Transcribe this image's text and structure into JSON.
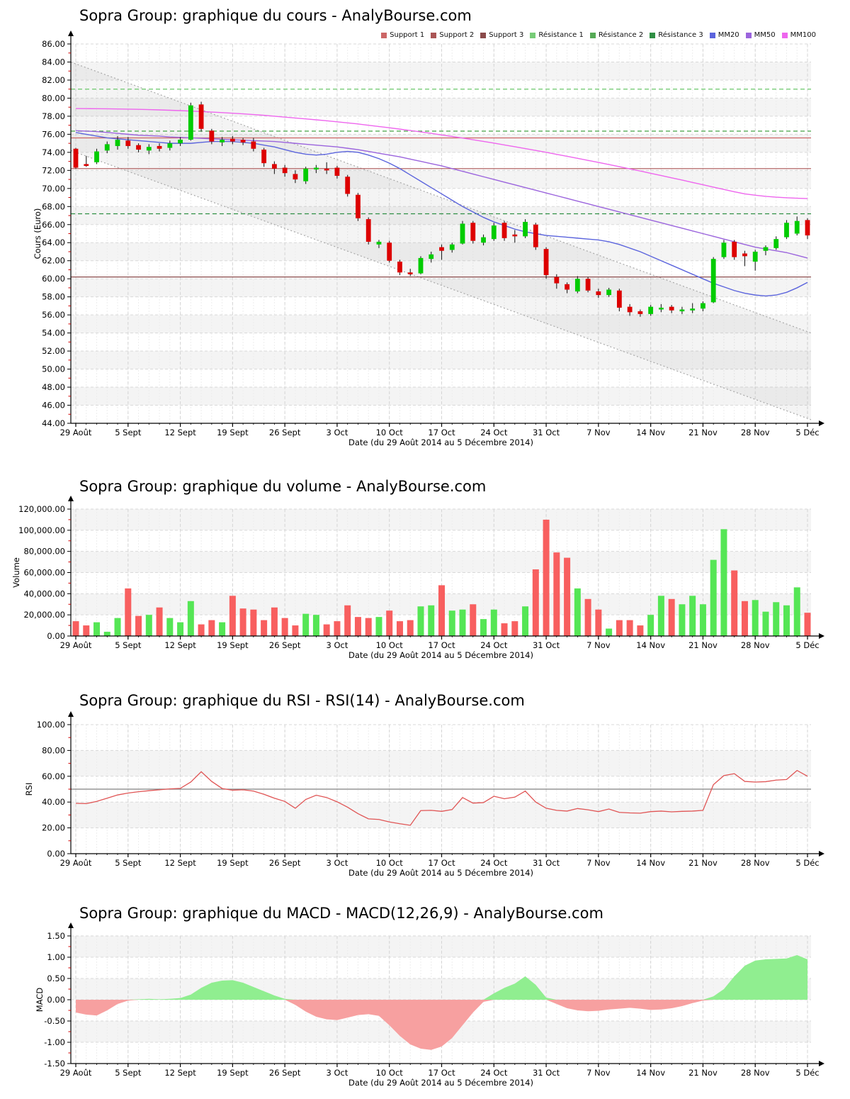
{
  "page": {
    "background": "#ffffff",
    "x_axis_label": "Date (du 29 Août 2014 au 5 Décembre 2014)",
    "x_tick_labels": [
      "29 Août",
      "5 Sept",
      "12 Sept",
      "19 Sept",
      "26 Sept",
      "3 Oct",
      "10 Oct",
      "17 Oct",
      "24 Oct",
      "31 Oct",
      "7 Nov",
      "14 Nov",
      "21 Nov",
      "28 Nov",
      "5 Déc"
    ]
  },
  "legend": {
    "items": [
      {
        "label": "Support 1",
        "color": "#cc6666"
      },
      {
        "label": "Support 2",
        "color": "#aa5555"
      },
      {
        "label": "Support 3",
        "color": "#8a4a4a"
      },
      {
        "label": "Résistance 1",
        "color": "#77cc77"
      },
      {
        "label": "Résistance 2",
        "color": "#55aa55"
      },
      {
        "label": "Résistance 3",
        "color": "#2f8f44"
      },
      {
        "label": "MM20",
        "color": "#5b64dd"
      },
      {
        "label": "MM50",
        "color": "#9b64dd"
      },
      {
        "label": "MM100",
        "color": "#ee66ee"
      }
    ]
  },
  "colors": {
    "candle_up": "#00cc00",
    "candle_down": "#dd0000",
    "wick": "#222222",
    "volume_up": "#55e655",
    "volume_down": "#f85f5f",
    "rsi_line": "#e05555",
    "rsi_midline": "#808080",
    "macd_positive": "#90ee90",
    "macd_negative": "#f7a0a0",
    "mm20": "#5b64dd",
    "mm50": "#9b64dd",
    "mm100": "#ee66ee",
    "support": [
      "#cc6666",
      "#aa5555",
      "#8a4a4a"
    ],
    "resistance": [
      "#77cc77",
      "#55aa55",
      "#2f8f44"
    ],
    "band_gray": "#f4f4f4",
    "grid": "#d9d9d9",
    "trend_dotted": "#a8a8a8"
  },
  "chart_data": [
    {
      "type": "candlestick",
      "title": "Sopra Group: graphique du cours - AnalyBourse.com",
      "ylabel": "Cours (Euro)",
      "ylim": [
        44,
        86
      ],
      "y_step": 2,
      "grid": true,
      "legend_position": "top-right",
      "support_levels": [
        75.6,
        72.2,
        60.2
      ],
      "resistance_levels": [
        81.0,
        76.35,
        67.2
      ],
      "trend_channel": {
        "upper_start": 84.0,
        "upper_end": 54.0,
        "lower_start": 74.2,
        "lower_end": 44.4
      },
      "candles_ohlc": [
        [
          74.4,
          74.5,
          72.2,
          72.3
        ],
        [
          72.7,
          73.6,
          72.4,
          72.5
        ],
        [
          72.9,
          74.4,
          72.7,
          74.1
        ],
        [
          74.2,
          75.2,
          73.9,
          74.9
        ],
        [
          74.7,
          75.8,
          74.3,
          75.4
        ],
        [
          75.3,
          75.7,
          74.4,
          74.7
        ],
        [
          74.8,
          75.0,
          74.0,
          74.3
        ],
        [
          74.2,
          74.9,
          73.8,
          74.6
        ],
        [
          74.7,
          75.0,
          74.1,
          74.4
        ],
        [
          74.5,
          75.3,
          74.2,
          75.0
        ],
        [
          75.0,
          75.7,
          74.7,
          75.4
        ],
        [
          75.4,
          79.5,
          75.3,
          79.2
        ],
        [
          79.3,
          79.6,
          76.3,
          76.6
        ],
        [
          76.4,
          76.6,
          74.9,
          75.2
        ],
        [
          75.1,
          75.7,
          74.7,
          75.4
        ],
        [
          75.5,
          75.8,
          74.9,
          75.2
        ],
        [
          75.4,
          75.6,
          74.8,
          75.1
        ],
        [
          75.2,
          75.6,
          74.1,
          74.4
        ],
        [
          74.3,
          74.5,
          72.4,
          72.8
        ],
        [
          72.7,
          73.0,
          71.6,
          72.2
        ],
        [
          72.3,
          72.6,
          71.3,
          71.7
        ],
        [
          71.6,
          72.0,
          70.6,
          71.0
        ],
        [
          70.8,
          72.4,
          70.5,
          72.2
        ],
        [
          72.1,
          72.6,
          71.7,
          72.3
        ],
        [
          72.2,
          72.9,
          71.6,
          72.0
        ],
        [
          72.3,
          72.5,
          71.1,
          71.4
        ],
        [
          71.3,
          71.5,
          69.1,
          69.4
        ],
        [
          69.3,
          69.5,
          66.4,
          66.7
        ],
        [
          66.6,
          66.8,
          63.8,
          64.1
        ],
        [
          63.8,
          64.3,
          63.4,
          64.1
        ],
        [
          64.0,
          64.2,
          61.8,
          62.0
        ],
        [
          61.9,
          62.1,
          60.4,
          60.7
        ],
        [
          60.7,
          61.1,
          60.3,
          60.5
        ],
        [
          60.6,
          62.5,
          60.5,
          62.3
        ],
        [
          62.2,
          63.0,
          61.8,
          62.7
        ],
        [
          63.5,
          63.8,
          62.1,
          63.1
        ],
        [
          63.2,
          64.0,
          62.9,
          63.8
        ],
        [
          63.9,
          66.4,
          63.8,
          66.1
        ],
        [
          66.2,
          66.4,
          63.9,
          64.2
        ],
        [
          64.0,
          64.9,
          63.7,
          64.6
        ],
        [
          64.4,
          66.2,
          64.2,
          65.9
        ],
        [
          66.2,
          66.4,
          64.2,
          64.5
        ],
        [
          64.9,
          65.4,
          64.0,
          64.7
        ],
        [
          64.7,
          66.6,
          64.5,
          66.3
        ],
        [
          66.0,
          66.2,
          63.2,
          63.5
        ],
        [
          63.3,
          63.5,
          60.0,
          60.4
        ],
        [
          60.2,
          60.5,
          58.9,
          59.5
        ],
        [
          59.4,
          59.6,
          58.4,
          58.8
        ],
        [
          58.6,
          60.3,
          58.4,
          60.0
        ],
        [
          60.0,
          60.2,
          58.5,
          58.7
        ],
        [
          58.6,
          58.9,
          57.9,
          58.2
        ],
        [
          58.2,
          59.0,
          58.0,
          58.8
        ],
        [
          58.7,
          58.9,
          56.4,
          56.8
        ],
        [
          56.9,
          57.2,
          55.9,
          56.3
        ],
        [
          56.4,
          56.6,
          55.8,
          56.1
        ],
        [
          56.1,
          57.1,
          55.9,
          56.9
        ],
        [
          56.6,
          57.2,
          56.3,
          56.8
        ],
        [
          56.9,
          57.1,
          56.2,
          56.5
        ],
        [
          56.4,
          56.9,
          56.1,
          56.6
        ],
        [
          56.5,
          57.3,
          56.2,
          56.7
        ],
        [
          56.7,
          57.5,
          56.4,
          57.3
        ],
        [
          57.4,
          62.4,
          57.3,
          62.2
        ],
        [
          62.4,
          64.3,
          62.2,
          64.0
        ],
        [
          64.1,
          64.3,
          62.1,
          62.4
        ],
        [
          62.8,
          63.1,
          61.4,
          62.5
        ],
        [
          61.9,
          63.2,
          60.9,
          63.0
        ],
        [
          63.1,
          63.7,
          62.6,
          63.5
        ],
        [
          63.4,
          64.7,
          63.2,
          64.4
        ],
        [
          64.6,
          66.5,
          64.4,
          66.2
        ],
        [
          65.0,
          66.9,
          64.8,
          66.4
        ],
        [
          66.5,
          66.7,
          64.4,
          64.8
        ]
      ],
      "mm20": [
        76.2,
        76.0,
        75.8,
        75.6,
        75.5,
        75.4,
        75.3,
        75.2,
        75.1,
        75.0,
        75.0,
        75.0,
        75.1,
        75.2,
        75.2,
        75.2,
        75.1,
        75.0,
        74.8,
        74.6,
        74.3,
        74.0,
        73.8,
        73.7,
        73.8,
        74.0,
        74.1,
        74.0,
        73.7,
        73.3,
        72.8,
        72.2,
        71.5,
        70.8,
        70.1,
        69.4,
        68.7,
        68.0,
        67.4,
        66.8,
        66.3,
        65.9,
        65.5,
        65.2,
        65.0,
        64.8,
        64.7,
        64.6,
        64.5,
        64.4,
        64.3,
        64.1,
        63.8,
        63.4,
        63.0,
        62.5,
        62.0,
        61.5,
        61.0,
        60.5,
        60.0,
        59.5,
        59.1,
        58.7,
        58.4,
        58.2,
        58.1,
        58.2,
        58.5,
        59.0,
        59.6
      ],
      "mm50": [
        76.4,
        76.35,
        76.3,
        76.2,
        76.1,
        76.0,
        75.9,
        75.85,
        75.8,
        75.7,
        75.65,
        75.6,
        75.55,
        75.5,
        75.45,
        75.4,
        75.35,
        75.3,
        75.25,
        75.2,
        75.1,
        75.0,
        74.9,
        74.8,
        74.7,
        74.6,
        74.45,
        74.3,
        74.1,
        73.9,
        73.7,
        73.5,
        73.25,
        73.0,
        72.75,
        72.5,
        72.2,
        71.9,
        71.6,
        71.3,
        71.0,
        70.7,
        70.4,
        70.1,
        69.8,
        69.5,
        69.2,
        68.9,
        68.6,
        68.3,
        68.0,
        67.7,
        67.4,
        67.1,
        66.8,
        66.5,
        66.2,
        65.9,
        65.6,
        65.3,
        65.0,
        64.7,
        64.4,
        64.1,
        63.8,
        63.5,
        63.3,
        63.1,
        62.9,
        62.6,
        62.3
      ],
      "mm100": [
        78.85,
        78.84,
        78.83,
        78.82,
        78.8,
        78.78,
        78.76,
        78.73,
        78.7,
        78.66,
        78.62,
        78.57,
        78.52,
        78.46,
        78.4,
        78.33,
        78.26,
        78.18,
        78.1,
        78.0,
        77.9,
        77.8,
        77.7,
        77.6,
        77.5,
        77.38,
        77.26,
        77.14,
        77.0,
        76.86,
        76.72,
        76.57,
        76.42,
        76.26,
        76.1,
        75.93,
        75.76,
        75.58,
        75.4,
        75.21,
        75.02,
        74.82,
        74.62,
        74.42,
        74.21,
        74.0,
        73.78,
        73.56,
        73.34,
        73.11,
        72.88,
        72.65,
        72.41,
        72.17,
        71.93,
        71.68,
        71.43,
        71.18,
        70.93,
        70.67,
        70.41,
        70.15,
        69.89,
        69.64,
        69.4,
        69.25,
        69.13,
        69.04,
        68.97,
        68.92,
        68.88
      ]
    },
    {
      "type": "bar",
      "title": "Sopra Group: graphique du volume - AnalyBourse.com",
      "ylabel": "Volume",
      "ylim": [
        0,
        120000
      ],
      "y_step": 20000,
      "values": [
        14000,
        10000,
        13000,
        4000,
        17000,
        45000,
        19000,
        20000,
        27000,
        17000,
        13000,
        33000,
        11000,
        15000,
        13000,
        38000,
        26000,
        25000,
        15000,
        27000,
        17000,
        10000,
        21000,
        20000,
        11000,
        14000,
        29000,
        18000,
        17000,
        18000,
        24000,
        14000,
        15000,
        28000,
        29000,
        48000,
        24000,
        25000,
        30000,
        16000,
        25000,
        12000,
        14000,
        28000,
        63000,
        110000,
        79000,
        74000,
        45000,
        35000,
        25000,
        7000,
        15000,
        15000,
        10000,
        20000,
        38000,
        35000,
        30000,
        38000,
        30000,
        72000,
        101000,
        62000,
        33000,
        34000,
        23000,
        32000,
        29000,
        46000,
        22000
      ]
    },
    {
      "type": "line",
      "title": "Sopra Group: graphique du RSI - RSI(14) - AnalyBourse.com",
      "ylabel": "RSI",
      "ylim": [
        0,
        100
      ],
      "y_step": 20,
      "midline": 50,
      "values": [
        39.0,
        38.8,
        40.5,
        43.0,
        45.5,
        47.0,
        48.0,
        48.8,
        49.5,
        50.2,
        50.6,
        55.5,
        63.5,
        56.0,
        50.5,
        49.2,
        49.5,
        48.5,
        46.0,
        43.0,
        40.5,
        35.2,
        42.0,
        45.3,
        43.5,
        40.2,
        36.0,
        31.0,
        27.0,
        26.5,
        24.6,
        23.2,
        22.0,
        33.4,
        33.6,
        32.8,
        34.2,
        43.5,
        39.2,
        39.6,
        44.5,
        42.6,
        43.8,
        48.5,
        40.0,
        35.2,
        33.6,
        33.0,
        35.0,
        34.0,
        32.6,
        34.6,
        32.0,
        31.6,
        31.4,
        32.6,
        33.0,
        32.4,
        32.8,
        33.0,
        33.6,
        53.5,
        60.5,
        62.0,
        56.0,
        55.5,
        55.8,
        57.0,
        57.5,
        64.5,
        60.0
      ]
    },
    {
      "type": "area",
      "title": "Sopra Group: graphique du MACD - MACD(12,26,9) - AnalyBourse.com",
      "ylabel": "MACD",
      "ylim": [
        -1.5,
        1.5
      ],
      "y_step": 0.5,
      "values": [
        -0.3,
        -0.35,
        -0.37,
        -0.25,
        -0.1,
        -0.02,
        0.01,
        0.02,
        0.01,
        0.02,
        0.04,
        0.12,
        0.28,
        0.4,
        0.45,
        0.46,
        0.4,
        0.3,
        0.2,
        0.1,
        0.02,
        -0.12,
        -0.28,
        -0.4,
        -0.46,
        -0.48,
        -0.42,
        -0.36,
        -0.34,
        -0.38,
        -0.6,
        -0.85,
        -1.05,
        -1.15,
        -1.18,
        -1.1,
        -0.9,
        -0.6,
        -0.3,
        -0.05,
        0.15,
        0.28,
        0.38,
        0.55,
        0.35,
        0.05,
        -0.1,
        -0.2,
        -0.25,
        -0.27,
        -0.26,
        -0.23,
        -0.21,
        -0.19,
        -0.21,
        -0.24,
        -0.23,
        -0.2,
        -0.15,
        -0.08,
        -0.02,
        0.08,
        0.25,
        0.55,
        0.8,
        0.92,
        0.95,
        0.96,
        0.97,
        1.05,
        0.95
      ]
    }
  ]
}
